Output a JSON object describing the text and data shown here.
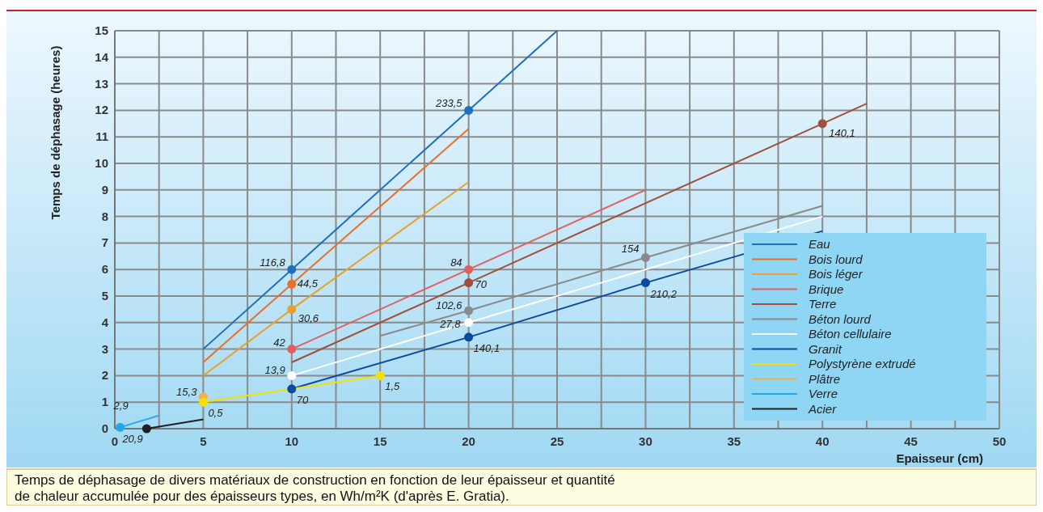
{
  "chart_data": {
    "type": "line",
    "xlabel": "Epaisseur (cm)",
    "ylabel": "Temps de déphasage (heures)",
    "xlim": [
      0,
      50
    ],
    "ylim": [
      0,
      15
    ],
    "xticks": [
      0,
      {
        "value": 2.5,
        "label": null
      },
      5,
      {
        "value": 7.5,
        "label": null
      },
      10,
      {
        "value": 12.5,
        "label": null
      },
      15,
      {
        "value": 17.5,
        "label": null
      },
      20,
      {
        "value": 22.5,
        "label": null
      },
      25,
      {
        "value": 27.5,
        "label": null
      },
      30,
      {
        "value": 32.5,
        "label": null
      },
      35,
      {
        "value": 37.5,
        "label": null
      },
      40,
      {
        "value": 42.5,
        "label": null
      },
      45,
      {
        "value": 47.5,
        "label": null
      },
      50
    ],
    "yticks": [
      0,
      1,
      2,
      3,
      4,
      5,
      6,
      7,
      8,
      9,
      10,
      11,
      12,
      13,
      14,
      15
    ],
    "grid": true,
    "legend": "bottom right",
    "line_style": "solid",
    "series": [
      {
        "name": "Eau",
        "color": "#1f6fc0",
        "x": [
          5,
          10,
          20,
          25
        ],
        "values": [
          3,
          6,
          12,
          15
        ]
      },
      {
        "name": "Bois lourd",
        "color": "#e8702a",
        "x": [
          5,
          10,
          20
        ],
        "values": [
          2.5,
          5.45,
          11.3
        ]
      },
      {
        "name": "Bois léger",
        "color": "#e8a030",
        "x": [
          5,
          10,
          20
        ],
        "values": [
          2,
          4.5,
          9.3
        ]
      },
      {
        "name": "Brique",
        "color": "#e06060",
        "x": [
          10,
          20,
          30
        ],
        "values": [
          3,
          6,
          9
        ]
      },
      {
        "name": "Terre",
        "color": "#a0503a",
        "x": [
          10,
          20,
          40,
          42.5
        ],
        "values": [
          2.5,
          5.5,
          11.5,
          12.25
        ]
      },
      {
        "name": "Béton lourd",
        "color": "#8a8a8a",
        "x": [
          15,
          20,
          30,
          40
        ],
        "values": [
          3.5,
          4.45,
          6.45,
          8.4
        ]
      },
      {
        "name": "Béton cellulaire",
        "color": "#ffffff",
        "x": [
          10,
          20,
          40
        ],
        "values": [
          2,
          4,
          8
        ]
      },
      {
        "name": "Granit",
        "color": "#0b4aa0",
        "x": [
          10,
          20,
          30,
          40
        ],
        "values": [
          1.5,
          3.45,
          5.5,
          7.45
        ]
      },
      {
        "name": "Polystyrène extrudé",
        "color": "#f5e000",
        "x": [
          5,
          10,
          15
        ],
        "values": [
          1,
          null,
          2
        ]
      },
      {
        "name": "Plâtre",
        "type": "scatter",
        "marker": "circle",
        "color": "#f0b050",
        "x": [
          5
        ],
        "values": [
          1.2
        ]
      },
      {
        "name": "Verre",
        "color": "#20a8e8",
        "x": [
          0.3,
          2.5
        ],
        "values": [
          0.05,
          0.5
        ]
      },
      {
        "name": "Acier",
        "color": "#202020",
        "x": [
          1.8,
          5
        ],
        "values": [
          0,
          0.35
        ]
      },
      {
        "type": "scatter",
        "marker": "circle",
        "color": "#1f6fc0",
        "x": [
          10,
          20
        ],
        "values": [
          6,
          12
        ]
      },
      {
        "type": "scatter",
        "marker": "circle",
        "color": "#e8702a",
        "x": [
          10
        ],
        "values": [
          5.45
        ]
      },
      {
        "type": "scatter",
        "marker": "circle",
        "color": "#e8a030",
        "x": [
          10
        ],
        "values": [
          4.5
        ]
      },
      {
        "type": "scatter",
        "marker": "circle",
        "color": "#e06060",
        "x": [
          10,
          20
        ],
        "values": [
          3,
          6
        ]
      },
      {
        "type": "scatter",
        "marker": "circle",
        "color": "#a0503a",
        "x": [
          20,
          40
        ],
        "values": [
          5.5,
          11.5
        ]
      },
      {
        "type": "scatter",
        "marker": "circle",
        "color": "#8a8a8a",
        "x": [
          20,
          30
        ],
        "values": [
          4.45,
          6.45
        ]
      },
      {
        "type": "scatter",
        "marker": "circle",
        "color": "#ffffff",
        "x": [
          10,
          20
        ],
        "values": [
          2,
          4
        ]
      },
      {
        "type": "scatter",
        "marker": "circle",
        "color": "#0b4aa0",
        "x": [
          10,
          20,
          30
        ],
        "values": [
          1.5,
          3.45,
          5.5
        ]
      },
      {
        "type": "scatter",
        "marker": "circle",
        "color": "#f5e000",
        "x": [
          5,
          15
        ],
        "values": [
          1,
          2
        ]
      },
      {
        "type": "scatter",
        "marker": "circle",
        "color": "#20a8e8",
        "x": [
          0.3
        ],
        "values": [
          0.05
        ]
      },
      {
        "type": "scatter",
        "marker": "circle",
        "color": "#202020",
        "x": [
          1.8
        ],
        "values": [
          0
        ]
      }
    ],
    "annotations": [
      {
        "text": "116,8",
        "x": 10,
        "y": 6
      },
      {
        "text": "233,5",
        "x": 20,
        "y": 12
      },
      {
        "text": "44,5",
        "x": 10,
        "y": 5.45
      },
      {
        "text": "30,6",
        "x": 10,
        "y": 4.5
      },
      {
        "text": "42",
        "x": 10,
        "y": 3
      },
      {
        "text": "84",
        "x": 20,
        "y": 6
      },
      {
        "text": "70",
        "x": 20,
        "y": 5.5
      },
      {
        "text": "140,1",
        "x": 40,
        "y": 11.5
      },
      {
        "text": "102,6",
        "x": 20,
        "y": 4.45
      },
      {
        "text": "154",
        "x": 30,
        "y": 6.45
      },
      {
        "text": "13,9",
        "x": 10,
        "y": 2
      },
      {
        "text": "27,8",
        "x": 20,
        "y": 4
      },
      {
        "text": "70",
        "x": 10,
        "y": 1.5
      },
      {
        "text": "140,1",
        "x": 20,
        "y": 3.45
      },
      {
        "text": "210,2",
        "x": 30,
        "y": 5.5
      },
      {
        "text": "0,5",
        "x": 5,
        "y": 1
      },
      {
        "text": "1,5",
        "x": 15,
        "y": 2
      },
      {
        "text": "15,3",
        "x": 5,
        "y": 1.2
      },
      {
        "text": "2,9",
        "x": 0.3,
        "y": 0.05
      },
      {
        "text": "20,9",
        "x": 1.8,
        "y": 0
      },
      "Temps de déphasage de divers matériaux de construction en fonction de leur épaisseur et quantité de chaleur accumulée pour des épaisseurs types, en Wh/m²K (d'après E. Gratia)."
    ]
  }
}
